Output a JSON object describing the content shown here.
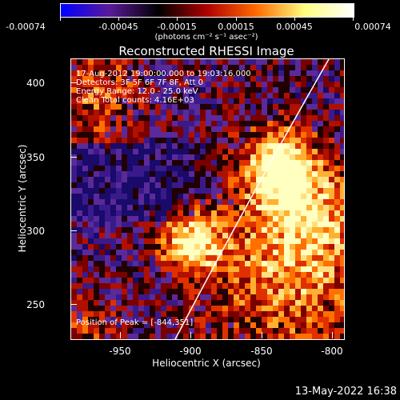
{
  "colorbar": {
    "ticks": [
      "-0.00074",
      "-0.00045",
      "-0.00015",
      "0.00015",
      "0.00045",
      "0.00074"
    ],
    "units": "(photons cm⁻² s⁻¹ asec⁻²)",
    "colors": [
      "#0000ff",
      "#5a1a9a",
      "#000000",
      "#b00000",
      "#ff6a00",
      "#ffff80",
      "#ffffff"
    ]
  },
  "title": "Reconstructed RHESSI Image",
  "info": {
    "line1": "17-Aug-2012 19:00:00.000 to 19:03:16.000",
    "line2": "Detectors: 3F 5F 6F 7F 8F, Att 0",
    "line3": "Energy Range: 12.0 - 25.0 keV",
    "line4": "Clean     Total counts: 4.16E+03",
    "peak": "Position of Peak = [-844,351]"
  },
  "axes": {
    "xlabel": "Heliocentric X (arcsec)",
    "ylabel": "Heliocentric Y (arcsec)",
    "xticks": [
      "-950",
      "-900",
      "-850",
      "-800"
    ],
    "yticks": [
      "400",
      "350",
      "300",
      "250"
    ]
  },
  "date_stamp": "13-May-2022 16:38"
}
